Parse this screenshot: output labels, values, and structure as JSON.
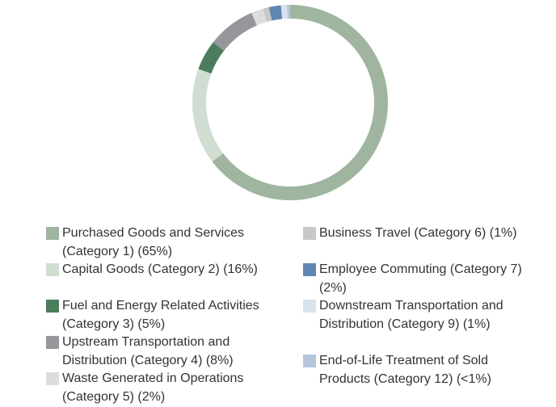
{
  "chart_data": {
    "type": "donut",
    "categories": [
      "Purchased Goods and Services (Category 1) (65%)",
      "Capital Goods (Category 2) (16%)",
      "Fuel and Energy Related Activities (Category 3) (5%)",
      "Upstream Transportation and Distribution (Category 4) (8%)",
      "Waste Generated in Operations (Category 5) (2%)",
      "Business Travel (Category 6) (1%)",
      "Employee Commuting (Category 7) (2%)",
      "Downstream Transportation and Distribution (Category 9) (1%)",
      "End-of-Life Treatment of Sold Products (Category 12) (<1%)"
    ],
    "values": [
      65,
      16,
      5,
      8,
      2,
      1,
      2,
      1,
      0.5
    ],
    "colors": [
      "#9fb59f",
      "#d1ddd1",
      "#4b7d5c",
      "#96979b",
      "#dddddd",
      "#c8c8c8",
      "#5f87b1",
      "#d6e3ed",
      "#b4c7da"
    ],
    "legend": "bottom"
  }
}
